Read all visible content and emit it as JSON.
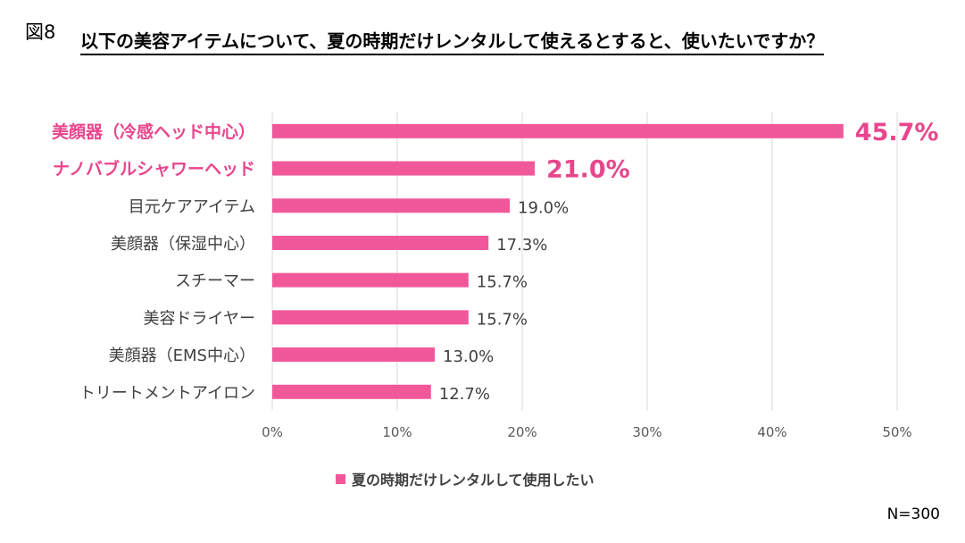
{
  "figure_label": "図8",
  "title": "以下の美容アイテムについて、夏の時期だけレンタルして使えるとすると、使いたいですか？",
  "sample_size": "N=300",
  "colors": {
    "bar": "#F0589A",
    "highlight_text": "#E8468C",
    "grid": "#D9D9D9",
    "text": "#404040"
  },
  "chart_data": {
    "type": "bar",
    "orientation": "horizontal",
    "categories": [
      "美顔器（冷感ヘッド中心）",
      "ナノバブルシャワーヘッド",
      "目元ケアアイテム",
      "美顔器（保湿中心）",
      "スチーマー",
      "美容ドライヤー",
      "美顔器（EMS中心）",
      "トリートメントアイロン"
    ],
    "value_labels": [
      "45.7%",
      "21.0%",
      "19.0%",
      "17.3%",
      "15.7%",
      "15.7%",
      "13.0%",
      "12.7%"
    ],
    "highlighted": [
      true,
      true,
      false,
      false,
      false,
      false,
      false,
      false
    ],
    "series": [
      {
        "name": "夏の時期だけレンタルして使用したい",
        "values": [
          45.7,
          21.0,
          19.0,
          17.3,
          15.7,
          15.7,
          13.0,
          12.7
        ]
      }
    ],
    "xlim": [
      0,
      50
    ],
    "xticks": [
      0,
      10,
      20,
      30,
      40,
      50
    ],
    "xtick_labels": [
      "0%",
      "10%",
      "20%",
      "30%",
      "40%",
      "50%"
    ],
    "grid": true,
    "legend_position": "bottom"
  }
}
